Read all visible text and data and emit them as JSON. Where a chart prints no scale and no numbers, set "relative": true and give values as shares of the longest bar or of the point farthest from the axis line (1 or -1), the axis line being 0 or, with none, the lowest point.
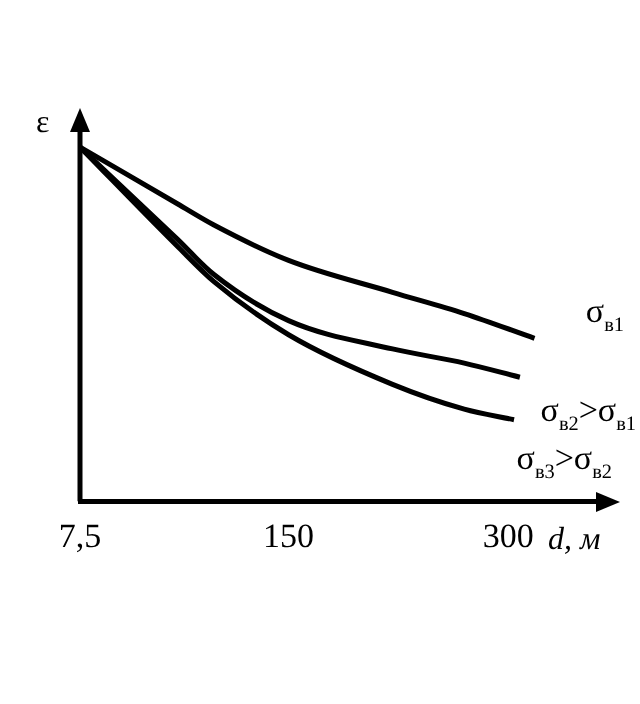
{
  "chart_data": {
    "type": "line",
    "relative": true,
    "ylabel": "ε",
    "xlabel": "d, м",
    "xlim": [
      7.5,
      360
    ],
    "xticks": [
      {
        "value": 7.5,
        "label": "7,5"
      },
      150,
      300
    ],
    "series": [
      {
        "name": "σ$_{в1}$",
        "color": "#000000",
        "x": [
          7.5,
          74,
          99,
          150,
          221,
          270,
          318
        ],
        "values": [
          1,
          0.84,
          0.78,
          0.68,
          0.59,
          0.53,
          0.46
        ]
      },
      {
        "name": "σ$_{в2}$>σ$_{в1}$",
        "color": "#000000",
        "x": [
          7.5,
          74,
          99,
          150,
          221,
          270,
          308
        ],
        "values": [
          1,
          0.74,
          0.64,
          0.51,
          0.43,
          0.39,
          0.35
        ]
      },
      {
        "name": "σ$_{в3}$>σ$_{в2}$",
        "color": "#000000",
        "x": [
          7.5,
          74,
          99,
          150,
          221,
          270,
          304
        ],
        "values": [
          1,
          0.72,
          0.62,
          0.47,
          0.33,
          0.26,
          0.23
        ]
      }
    ],
    "grid": false,
    "legend": false,
    "marker": "none",
    "line_style": "solid"
  }
}
